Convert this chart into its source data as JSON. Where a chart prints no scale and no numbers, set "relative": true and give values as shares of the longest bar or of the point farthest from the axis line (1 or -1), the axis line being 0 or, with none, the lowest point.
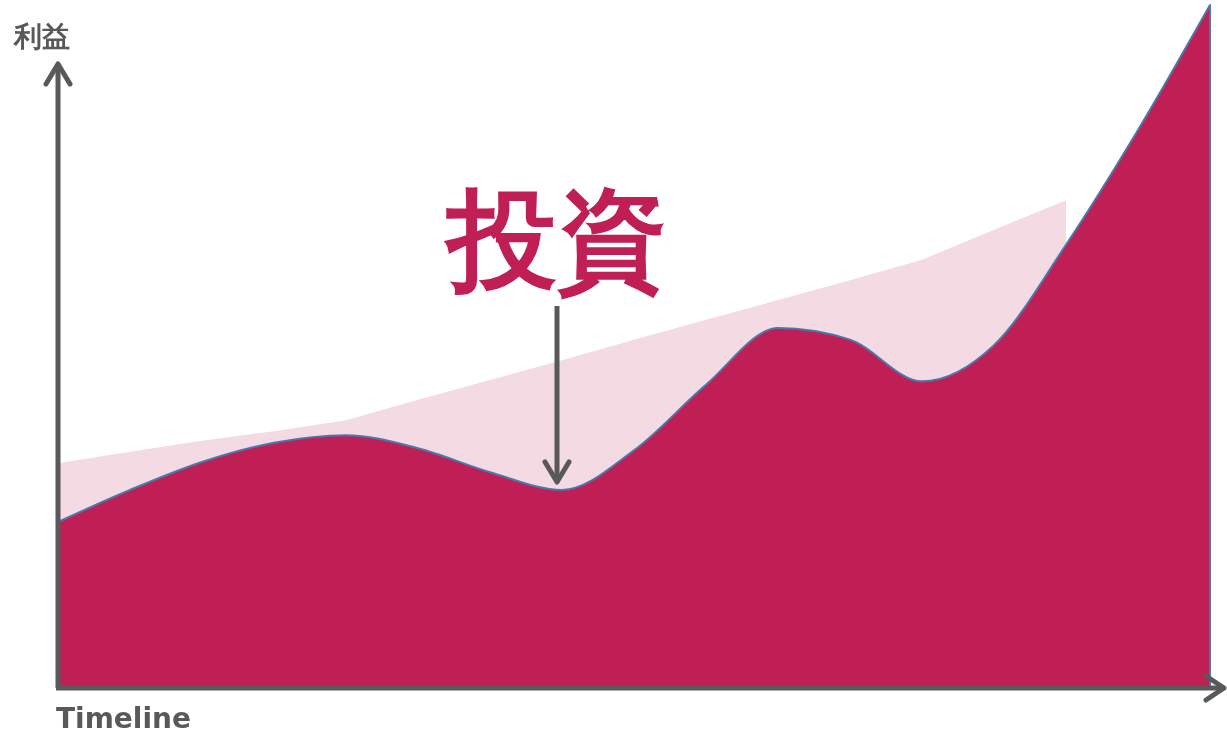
{
  "chart_data": {
    "type": "area",
    "relative": true,
    "xlabel": "Timeline",
    "ylabel": "利益",
    "annotations": [
      "投資"
    ],
    "categories": [
      null,
      null,
      null,
      null,
      null,
      null,
      null,
      null,
      null,
      null,
      null,
      null,
      null,
      null,
      null,
      null,
      null
    ],
    "series": [
      {
        "color": "#f4dbe3",
        "values": [
          0.329,
          0.346,
          0.362,
          0.376,
          0.392,
          0.422,
          0.451,
          0.48,
          0.51,
          0.539,
          0.568,
          0.597,
          0.627,
          0.671,
          0.714,
          null,
          null
        ]
      },
      {
        "color": "#c01f55",
        "values": [
          0.243,
          0.29,
          0.331,
          0.359,
          0.37,
          0.351,
          0.316,
          0.29,
          0.348,
          0.444,
          0.527,
          0.51,
          0.449,
          0.502,
          0.649,
          0.817,
          1
        ]
      }
    ]
  }
}
